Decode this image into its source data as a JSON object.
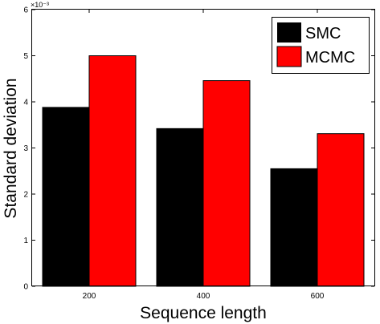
{
  "chart_data": {
    "type": "bar",
    "categories": [
      "200",
      "400",
      "600"
    ],
    "series": [
      {
        "name": "SMC",
        "values": [
          3.88,
          3.42,
          2.55
        ],
        "color": "#000000"
      },
      {
        "name": "MCMC",
        "values": [
          5.0,
          4.46,
          3.31
        ],
        "color": "#ff0000"
      }
    ],
    "xlabel": "Sequence length",
    "ylabel": "Standard deviation",
    "ylim": [
      0,
      6
    ],
    "yticks": [
      "0",
      "1",
      "2",
      "3",
      "4",
      "5",
      "6"
    ],
    "y_exponent": "×10⁻³",
    "grid": false,
    "legend_position": "top-right"
  }
}
